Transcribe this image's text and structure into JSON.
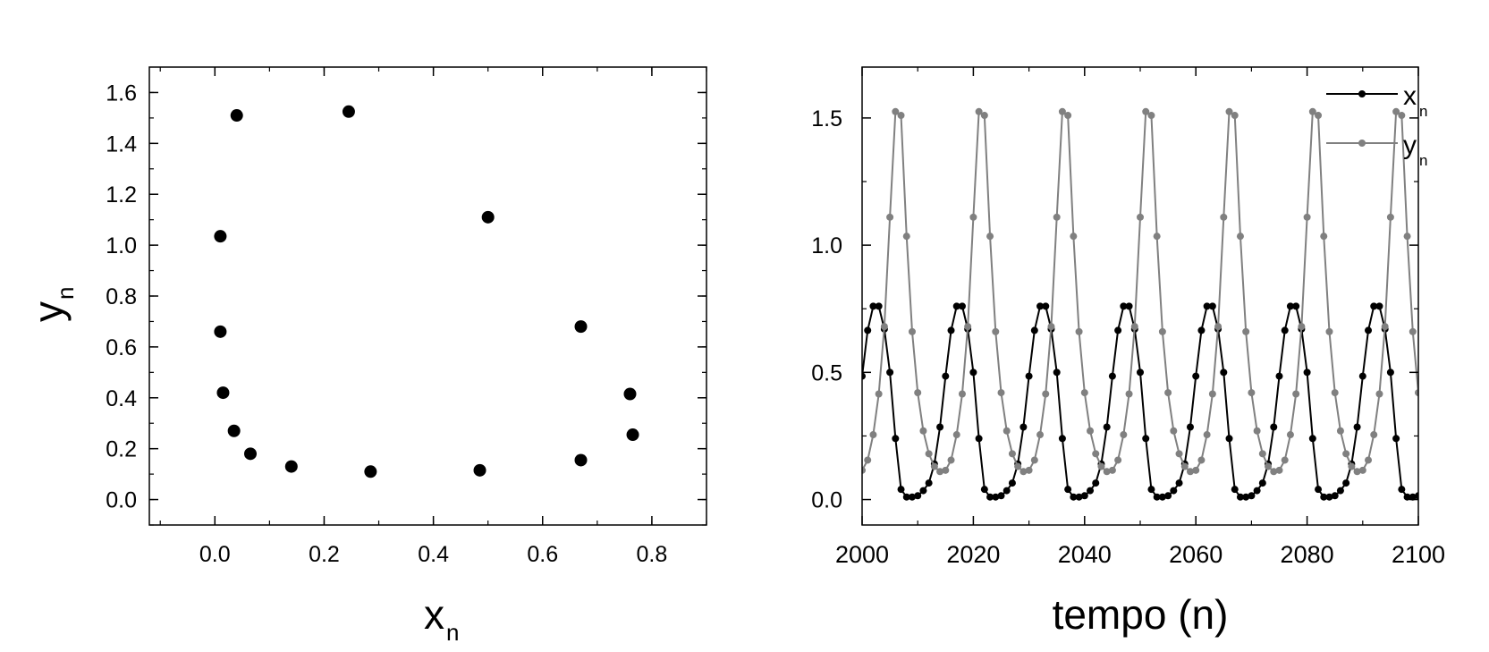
{
  "chart_data": [
    {
      "type": "scatter",
      "title": "",
      "xlabel": "x",
      "xlabel_sub": "n",
      "ylabel": "y",
      "ylabel_sub": "n",
      "xlim": [
        -0.12,
        0.9
      ],
      "ylim": [
        -0.1,
        1.7
      ],
      "xticks": [
        0.0,
        0.2,
        0.4,
        0.6,
        0.8
      ],
      "xtick_labels": [
        "0.0",
        "0.2",
        "0.4",
        "0.6",
        "0.8"
      ],
      "yticks": [
        0.0,
        0.2,
        0.4,
        0.6,
        0.8,
        1.0,
        1.2,
        1.4,
        1.6
      ],
      "ytick_labels": [
        "0.0",
        "0.2",
        "0.4",
        "0.6",
        "0.8",
        "1.0",
        "1.2",
        "1.4",
        "1.6"
      ],
      "grid": false,
      "legend": "none",
      "marker_color": "#000000",
      "points": [
        {
          "x": 0.04,
          "y": 1.51
        },
        {
          "x": 0.245,
          "y": 1.525
        },
        {
          "x": 0.5,
          "y": 1.11
        },
        {
          "x": 0.01,
          "y": 1.035
        },
        {
          "x": 0.01,
          "y": 0.66
        },
        {
          "x": 0.67,
          "y": 0.68
        },
        {
          "x": 0.015,
          "y": 0.42
        },
        {
          "x": 0.76,
          "y": 0.415
        },
        {
          "x": 0.035,
          "y": 0.27
        },
        {
          "x": 0.765,
          "y": 0.255
        },
        {
          "x": 0.065,
          "y": 0.18
        },
        {
          "x": 0.67,
          "y": 0.155
        },
        {
          "x": 0.14,
          "y": 0.13
        },
        {
          "x": 0.285,
          "y": 0.11
        },
        {
          "x": 0.485,
          "y": 0.115
        }
      ]
    },
    {
      "type": "line",
      "title": "",
      "xlabel": "tempo (n)",
      "ylabel": "",
      "xlim": [
        2000,
        2100
      ],
      "ylim": [
        -0.1,
        1.7
      ],
      "xticks": [
        2000,
        2020,
        2040,
        2060,
        2080,
        2100
      ],
      "xtick_labels": [
        "2000",
        "2020",
        "2040",
        "2060",
        "2080",
        "2100"
      ],
      "yticks": [
        0.0,
        0.5,
        1.0,
        1.5
      ],
      "ytick_labels": [
        "0.0",
        "0.5",
        "1.0",
        "1.5"
      ],
      "grid": false,
      "legend": "top-right",
      "x_start": 2000,
      "x_step": 1,
      "period": 15,
      "series": [
        {
          "name": "x",
          "name_sub": "n",
          "color": "#000000",
          "values": [
            0.485,
            0.665,
            0.76,
            0.76,
            0.67,
            0.5,
            0.24,
            0.04,
            0.01,
            0.01,
            0.015,
            0.035,
            0.065,
            0.14,
            0.285,
            0.485,
            0.665,
            0.76,
            0.76,
            0.67,
            0.5,
            0.24,
            0.04,
            0.01,
            0.01,
            0.015,
            0.035,
            0.065,
            0.14,
            0.285,
            0.485,
            0.665,
            0.76,
            0.76,
            0.67,
            0.5,
            0.24,
            0.04,
            0.01,
            0.01,
            0.015,
            0.035,
            0.065,
            0.14,
            0.285,
            0.485,
            0.665,
            0.76,
            0.76,
            0.67,
            0.5,
            0.24,
            0.04,
            0.01,
            0.01,
            0.015,
            0.035,
            0.065,
            0.14,
            0.285,
            0.485,
            0.665,
            0.76,
            0.76,
            0.67,
            0.5,
            0.24,
            0.04,
            0.01,
            0.01,
            0.015,
            0.035,
            0.065,
            0.14,
            0.285,
            0.485,
            0.665,
            0.76,
            0.76,
            0.67,
            0.5,
            0.24,
            0.04,
            0.01,
            0.01,
            0.015,
            0.035,
            0.065,
            0.14,
            0.285,
            0.485,
            0.665,
            0.76,
            0.76,
            0.67,
            0.5,
            0.24,
            0.04,
            0.01,
            0.01,
            0.015
          ]
        },
        {
          "name": "y",
          "name_sub": "n",
          "color": "#808080",
          "values": [
            0.115,
            0.155,
            0.255,
            0.415,
            0.68,
            1.11,
            1.525,
            1.51,
            1.035,
            0.66,
            0.42,
            0.27,
            0.18,
            0.13,
            0.11,
            0.115,
            0.155,
            0.255,
            0.415,
            0.68,
            1.11,
            1.525,
            1.51,
            1.035,
            0.66,
            0.42,
            0.27,
            0.18,
            0.13,
            0.11,
            0.115,
            0.155,
            0.255,
            0.415,
            0.68,
            1.11,
            1.525,
            1.51,
            1.035,
            0.66,
            0.42,
            0.27,
            0.18,
            0.13,
            0.11,
            0.115,
            0.155,
            0.255,
            0.415,
            0.68,
            1.11,
            1.525,
            1.51,
            1.035,
            0.66,
            0.42,
            0.27,
            0.18,
            0.13,
            0.11,
            0.115,
            0.155,
            0.255,
            0.415,
            0.68,
            1.11,
            1.525,
            1.51,
            1.035,
            0.66,
            0.42,
            0.27,
            0.18,
            0.13,
            0.11,
            0.115,
            0.155,
            0.255,
            0.415,
            0.68,
            1.11,
            1.525,
            1.51,
            1.035,
            0.66,
            0.42,
            0.27,
            0.18,
            0.13,
            0.11,
            0.115,
            0.155,
            0.255,
            0.415,
            0.68,
            1.11,
            1.525,
            1.51,
            1.035,
            0.66,
            0.42
          ]
        }
      ]
    }
  ]
}
